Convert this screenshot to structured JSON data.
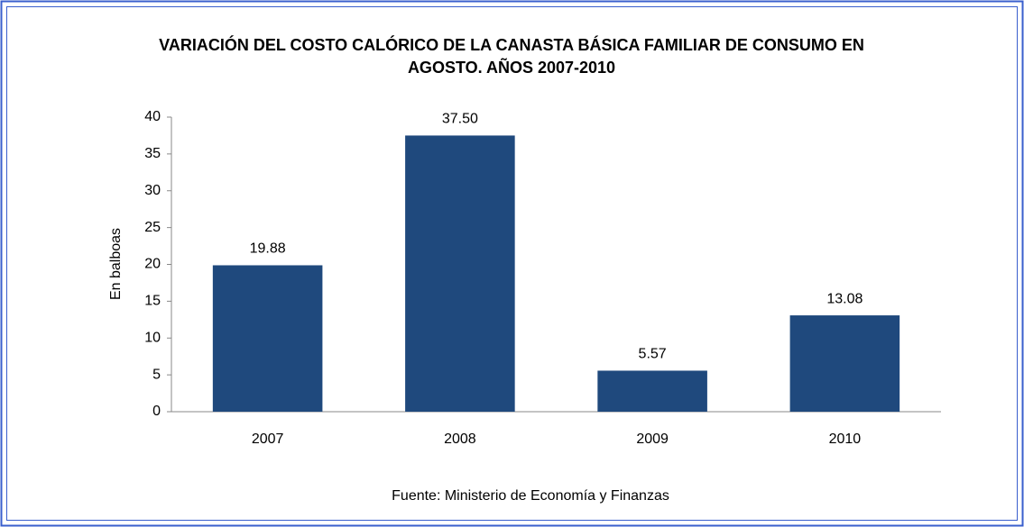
{
  "chart_data": {
    "type": "bar",
    "title": [
      "VARIACIÓN DEL COSTO CALÓRICO DE LA CANASTA BÁSICA FAMILIAR DE CONSUMO EN",
      "AGOSTO.  AÑOS 2007-2010"
    ],
    "y_label": "En balboas",
    "source": "Fuente: Ministerio de Economía y Finanzas",
    "categories": [
      "2007",
      "2008",
      "2009",
      "2010"
    ],
    "values": [
      19.88,
      37.5,
      5.57,
      13.08
    ],
    "value_labels": [
      "19.88",
      "37.50",
      "5.57",
      "13.08"
    ],
    "color": "#1f497d",
    "ylim": [
      0,
      40
    ],
    "yticks": [
      0,
      5,
      10,
      15,
      20,
      25,
      30,
      35,
      40
    ],
    "grid": false
  }
}
